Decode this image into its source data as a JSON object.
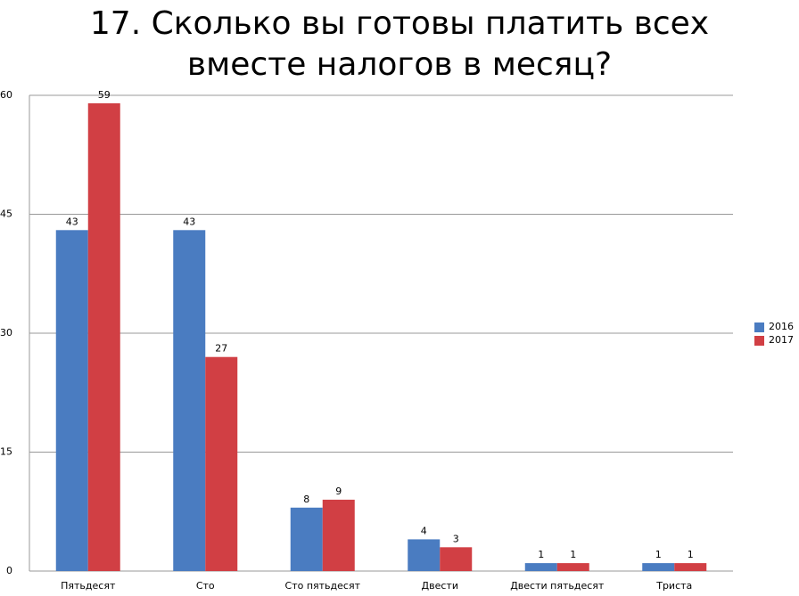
{
  "chart_data": {
    "type": "bar",
    "title": "17. Сколько вы готовы платить всех вместе налогов в месяц?",
    "categories": [
      "Пятьдесят",
      "Сто",
      "Сто пятьдесят",
      "Двести",
      "Двести пятьдесят",
      "Триста"
    ],
    "series": [
      {
        "name": "2016",
        "color": "#4a7cc1",
        "values": [
          43,
          43,
          8,
          4,
          1,
          1
        ]
      },
      {
        "name": "2017",
        "color": "#d13f44",
        "values": [
          59,
          27,
          9,
          3,
          1,
          1
        ]
      }
    ],
    "ylim": [
      0,
      60
    ],
    "yticks": [
      0,
      15,
      30,
      45,
      60
    ],
    "grid": true,
    "legend": "right"
  }
}
